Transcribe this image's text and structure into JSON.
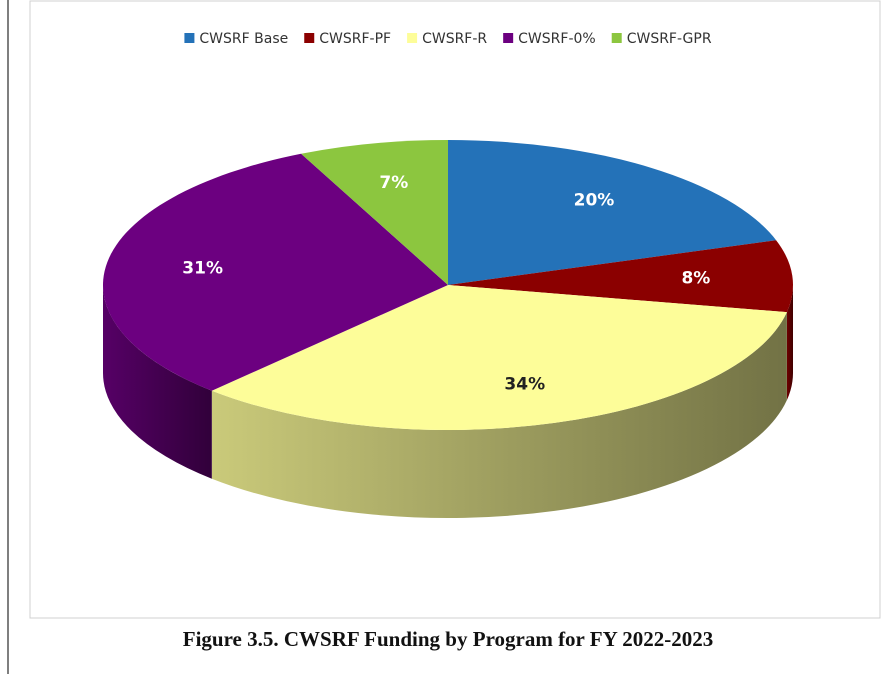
{
  "chart_data": {
    "type": "pie",
    "title": "Figure 3.5. CWSRF Funding by Program for FY 2022-2023",
    "categories": [
      "CWSRF Base",
      "CWSRF-PF",
      "CWSRF-R",
      "CWSRF-0%",
      "CWSRF-GPR"
    ],
    "values": [
      20,
      8,
      34,
      31,
      7
    ],
    "value_labels": [
      "20%",
      "8%",
      "34%",
      "31%",
      "7%"
    ],
    "colors": [
      "#2472b8",
      "#8b0000",
      "#fdfd99",
      "#6c0080",
      "#8cc63f"
    ],
    "legend": "top"
  }
}
